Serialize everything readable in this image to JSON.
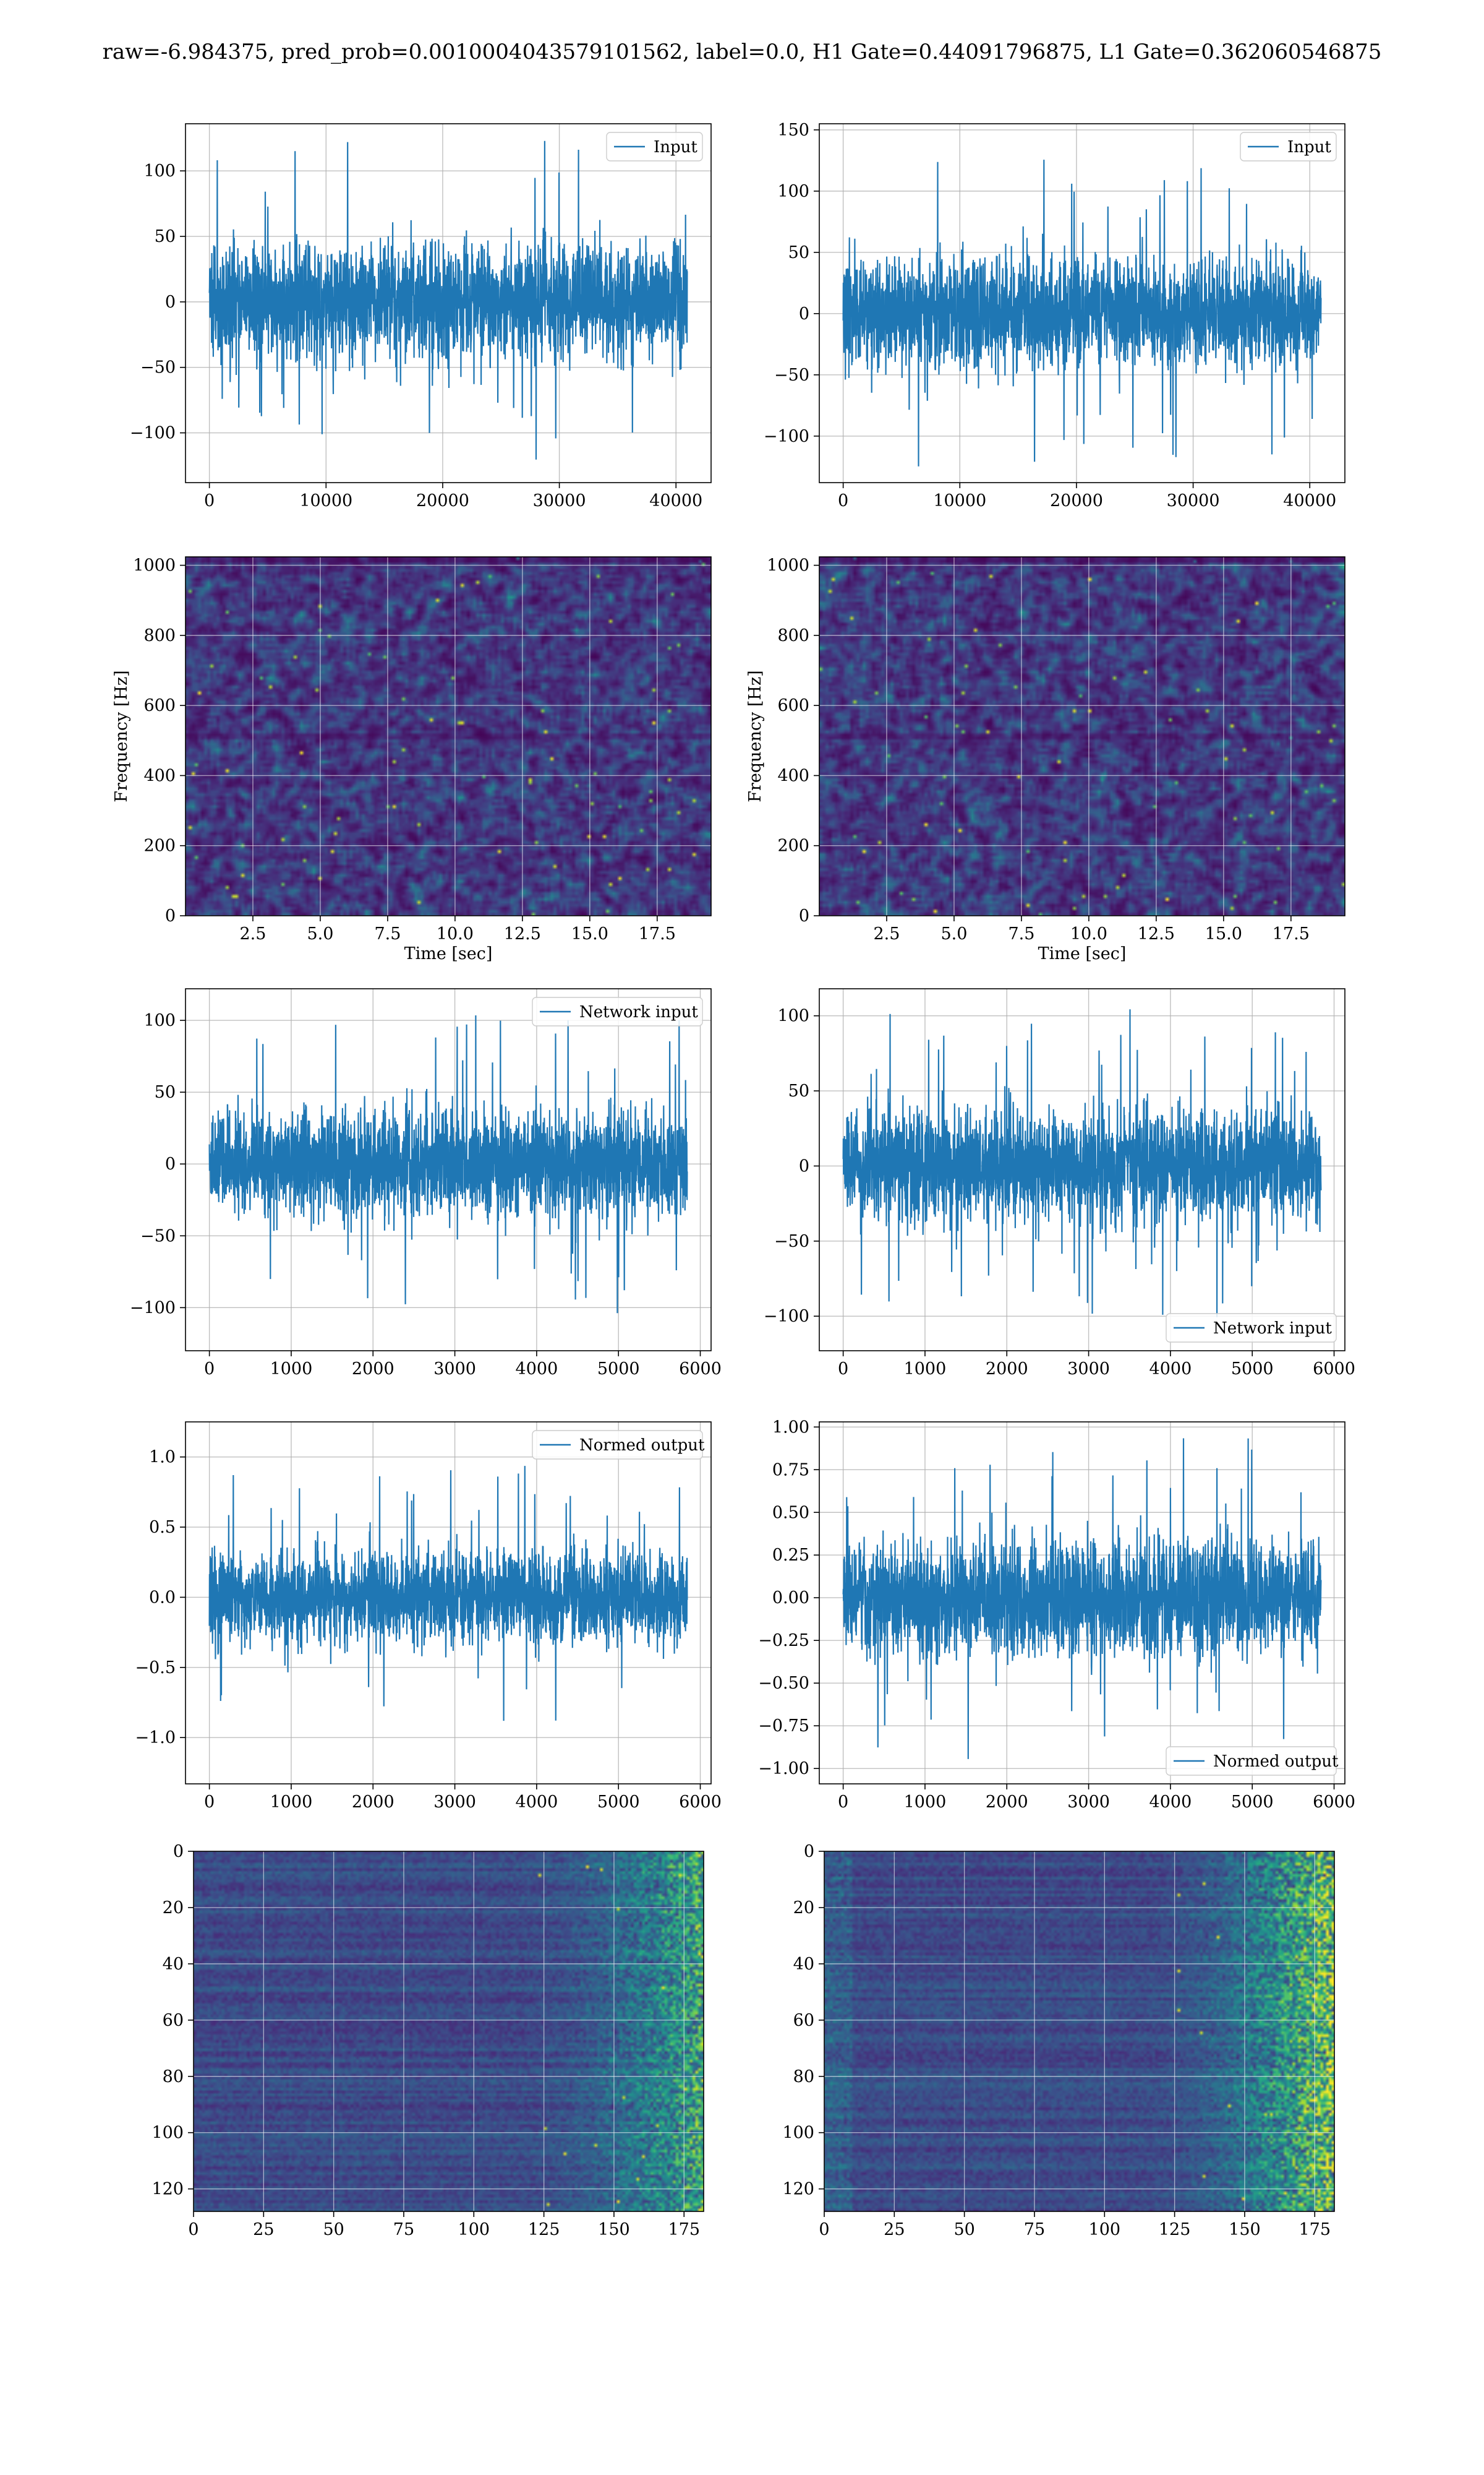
{
  "figure": {
    "title": "raw=-6.984375, pred_prob=0.0010004043579101562, label=0.0, H1 Gate=0.44091796875, L1 Gate=0.362060546875"
  },
  "colors": {
    "line": "#1f77b4",
    "grid": "#b0b0b0",
    "viridis_dark": "#440154",
    "viridis_mid": "#3b528b",
    "viridis_teal": "#21918c",
    "viridis_green": "#5ec962",
    "viridis_yellow": "#fde725"
  },
  "chart_data": [
    {
      "id": "h1-input",
      "type": "line",
      "series": [
        {
          "name": "Input",
          "amplitude_typical": 60,
          "amplitude_peak": 126,
          "n": 40960
        }
      ],
      "xlim": [
        -2048,
        43008
      ],
      "ylim": [
        -138,
        136
      ],
      "xticks": [
        0,
        10000,
        20000,
        30000,
        40000
      ],
      "xtick_labels": [
        "0",
        "10000",
        "20000",
        "30000",
        "40000"
      ],
      "yticks": [
        -100,
        -50,
        0,
        50,
        100
      ],
      "ytick_labels": [
        "−100",
        "−50",
        "0",
        "50",
        "100"
      ],
      "legend": "top-right",
      "xlabel": "",
      "ylabel": ""
    },
    {
      "id": "l1-input",
      "type": "line",
      "series": [
        {
          "name": "Input",
          "amplitude_typical": 60,
          "amplitude_peak": 142,
          "n": 40960
        }
      ],
      "xlim": [
        -2048,
        43008
      ],
      "ylim": [
        -138,
        155
      ],
      "xticks": [
        0,
        10000,
        20000,
        30000,
        40000
      ],
      "xtick_labels": [
        "0",
        "10000",
        "20000",
        "30000",
        "40000"
      ],
      "yticks": [
        -100,
        -50,
        0,
        50,
        100,
        150
      ],
      "ytick_labels": [
        "−100",
        "−50",
        "0",
        "50",
        "100",
        "150"
      ],
      "legend": "top-right",
      "xlabel": "",
      "ylabel": ""
    },
    {
      "id": "h1-spectrogram",
      "type": "heatmap",
      "colormap": "viridis",
      "xlim": [
        0,
        19.5
      ],
      "ylim": [
        0,
        1024
      ],
      "xticks": [
        2.5,
        5.0,
        7.5,
        10.0,
        12.5,
        15.0,
        17.5
      ],
      "xtick_labels": [
        "2.5",
        "5.0",
        "7.5",
        "10.0",
        "12.5",
        "15.0",
        "17.5"
      ],
      "yticks": [
        0,
        200,
        400,
        600,
        800,
        1000
      ],
      "ytick_labels": [
        "0",
        "200",
        "400",
        "600",
        "800",
        "1000"
      ],
      "xlabel": "Time [sec]",
      "ylabel": "Frequency [Hz]"
    },
    {
      "id": "l1-spectrogram",
      "type": "heatmap",
      "colormap": "viridis",
      "xlim": [
        0,
        19.5
      ],
      "ylim": [
        0,
        1024
      ],
      "xticks": [
        2.5,
        5.0,
        7.5,
        10.0,
        12.5,
        15.0,
        17.5
      ],
      "xtick_labels": [
        "2.5",
        "5.0",
        "7.5",
        "10.0",
        "12.5",
        "15.0",
        "17.5"
      ],
      "yticks": [
        0,
        200,
        400,
        600,
        800,
        1000
      ],
      "ytick_labels": [
        "0",
        "200",
        "400",
        "600",
        "800",
        "1000"
      ],
      "xlabel": "Time [sec]",
      "ylabel": "Frequency [Hz]"
    },
    {
      "id": "h1-network-input",
      "type": "line",
      "series": [
        {
          "name": "Network input",
          "amplitude_typical": 50,
          "amplitude_peak": 110,
          "n": 5840
        }
      ],
      "xlim": [
        -292,
        6132
      ],
      "ylim": [
        -130,
        122
      ],
      "xticks": [
        0,
        1000,
        2000,
        3000,
        4000,
        5000,
        6000
      ],
      "xtick_labels": [
        "0",
        "1000",
        "2000",
        "3000",
        "4000",
        "5000",
        "6000"
      ],
      "yticks": [
        -100,
        -50,
        0,
        50,
        100
      ],
      "ytick_labels": [
        "−100",
        "−50",
        "0",
        "50",
        "100"
      ],
      "legend": "top-right",
      "xlabel": "",
      "ylabel": ""
    },
    {
      "id": "l1-network-input",
      "type": "line",
      "series": [
        {
          "name": "Network input",
          "amplitude_typical": 50,
          "amplitude_peak": 109,
          "n": 5840
        }
      ],
      "xlim": [
        -292,
        6132
      ],
      "ylim": [
        -123,
        118
      ],
      "xticks": [
        0,
        1000,
        2000,
        3000,
        4000,
        5000,
        6000
      ],
      "xtick_labels": [
        "0",
        "1000",
        "2000",
        "3000",
        "4000",
        "5000",
        "6000"
      ],
      "yticks": [
        -100,
        -50,
        0,
        50,
        100
      ],
      "ytick_labels": [
        "−100",
        "−50",
        "0",
        "50",
        "100"
      ],
      "legend": "bottom-right",
      "xlabel": "",
      "ylabel": ""
    },
    {
      "id": "h1-normed-output",
      "type": "line",
      "series": [
        {
          "name": "Normed output",
          "amplitude_typical": 0.45,
          "amplitude_peak": 1.13,
          "n": 5840
        }
      ],
      "xlim": [
        -292,
        6132
      ],
      "ylim": [
        -1.33,
        1.25
      ],
      "xticks": [
        0,
        1000,
        2000,
        3000,
        4000,
        5000,
        6000
      ],
      "xtick_labels": [
        "0",
        "1000",
        "2000",
        "3000",
        "4000",
        "5000",
        "6000"
      ],
      "yticks": [
        -1.0,
        -0.5,
        0.0,
        0.5,
        1.0
      ],
      "ytick_labels": [
        "−1.0",
        "−0.5",
        "0.0",
        "0.5",
        "1.0"
      ],
      "legend": "top-right",
      "xlabel": "",
      "ylabel": ""
    },
    {
      "id": "l1-normed-output",
      "type": "line",
      "series": [
        {
          "name": "Normed output",
          "amplitude_typical": 0.45,
          "amplitude_peak": 0.97,
          "n": 5840
        }
      ],
      "xlim": [
        -292,
        6132
      ],
      "ylim": [
        -1.09,
        1.03
      ],
      "xticks": [
        0,
        1000,
        2000,
        3000,
        4000,
        5000,
        6000
      ],
      "xtick_labels": [
        "0",
        "1000",
        "2000",
        "3000",
        "4000",
        "5000",
        "6000"
      ],
      "yticks": [
        -1.0,
        -0.75,
        -0.5,
        -0.25,
        0.0,
        0.25,
        0.5,
        0.75,
        1.0
      ],
      "ytick_labels": [
        "−1.00",
        "−0.75",
        "−0.50",
        "−0.25",
        "0.00",
        "0.25",
        "0.50",
        "0.75",
        "1.00"
      ],
      "legend": "bottom-right",
      "xlabel": "",
      "ylabel": ""
    },
    {
      "id": "h1-feature-map",
      "type": "heatmap",
      "colormap": "viridis",
      "xlim": [
        0,
        182
      ],
      "ylim": [
        128,
        0
      ],
      "xticks": [
        0,
        25,
        50,
        75,
        100,
        125,
        150,
        175
      ],
      "xtick_labels": [
        "0",
        "25",
        "50",
        "75",
        "100",
        "125",
        "150",
        "175"
      ],
      "yticks": [
        0,
        20,
        40,
        60,
        80,
        100,
        120
      ],
      "ytick_labels": [
        "0",
        "20",
        "40",
        "60",
        "80",
        "100",
        "120"
      ],
      "xlabel": "",
      "ylabel": ""
    },
    {
      "id": "l1-feature-map",
      "type": "heatmap",
      "colormap": "viridis",
      "xlim": [
        0,
        182
      ],
      "ylim": [
        128,
        0
      ],
      "xticks": [
        0,
        25,
        50,
        75,
        100,
        125,
        150,
        175
      ],
      "xtick_labels": [
        "0",
        "25",
        "50",
        "75",
        "100",
        "125",
        "150",
        "175"
      ],
      "yticks": [
        0,
        20,
        40,
        60,
        80,
        100,
        120
      ],
      "ytick_labels": [
        "0",
        "20",
        "40",
        "60",
        "80",
        "100",
        "120"
      ],
      "xlabel": "",
      "ylabel": ""
    }
  ]
}
